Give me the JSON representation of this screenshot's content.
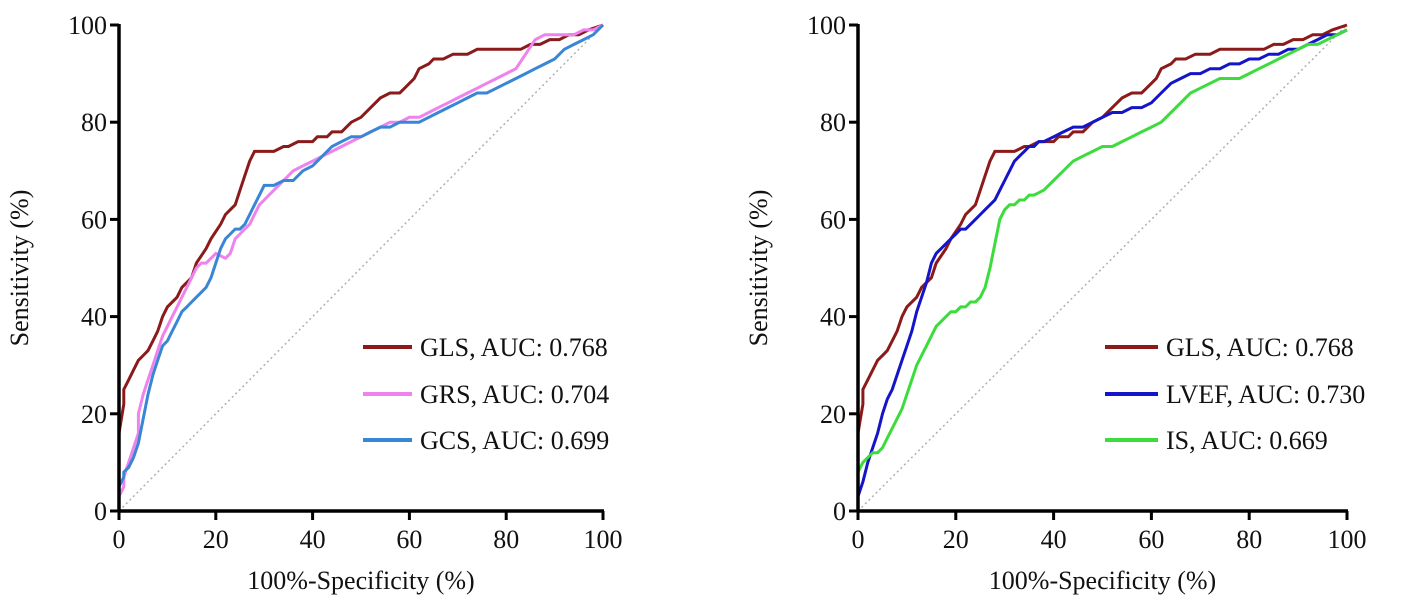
{
  "chart_data": [
    {
      "type": "line",
      "xlabel": "100%-Specificity (%)",
      "ylabel": "Sensitivity (%)",
      "xlim": [
        0,
        100
      ],
      "ylim": [
        0,
        100
      ],
      "xticks": [
        "0",
        "20",
        "40",
        "60",
        "80",
        "100"
      ],
      "yticks": [
        "0",
        "20",
        "40",
        "60",
        "80",
        "100"
      ],
      "grid": false,
      "legend": "bottom-right",
      "reference_line": "diagonal-dotted",
      "colors": [
        "#8B1A1A",
        "#EE82EE",
        "#3A86D6"
      ],
      "series": [
        {
          "name": "GLS, AUC: 0.768",
          "x": [
            0,
            0,
            0,
            1,
            1,
            2,
            3,
            4,
            5,
            6,
            7,
            8,
            9,
            10,
            12,
            13,
            15,
            16,
            18,
            19,
            21,
            22,
            23,
            24,
            25,
            26,
            27,
            28,
            30,
            32,
            34,
            35,
            37,
            38,
            40,
            41,
            43,
            44,
            46,
            48,
            50,
            52,
            54,
            56,
            58,
            59,
            61,
            62,
            64,
            65,
            67,
            69,
            70,
            72,
            74,
            76,
            78,
            80,
            82,
            83,
            85,
            87,
            89,
            91,
            93,
            95,
            97,
            100
          ],
          "y": [
            0,
            10,
            16,
            22,
            25,
            27,
            29,
            31,
            32,
            33,
            35,
            37,
            40,
            42,
            44,
            46,
            48,
            51,
            54,
            56,
            59,
            61,
            62,
            63,
            66,
            69,
            72,
            74,
            74,
            74,
            75,
            75,
            76,
            76,
            76,
            77,
            77,
            78,
            78,
            80,
            81,
            83,
            85,
            86,
            86,
            87,
            89,
            91,
            92,
            93,
            93,
            94,
            94,
            94,
            95,
            95,
            95,
            95,
            95,
            95,
            96,
            96,
            97,
            97,
            98,
            98,
            99,
            100
          ]
        },
        {
          "name": "GRS, AUC: 0.704",
          "x": [
            0,
            0,
            1,
            1,
            2,
            3,
            4,
            4,
            5,
            6,
            7,
            8,
            9,
            10,
            11,
            12,
            13,
            14,
            15,
            16,
            17,
            18,
            19,
            20,
            22,
            23,
            24,
            25,
            26,
            27,
            28,
            29,
            30,
            31,
            32,
            33,
            34,
            35,
            36,
            38,
            40,
            42,
            44,
            46,
            48,
            50,
            52,
            54,
            56,
            58,
            60,
            62,
            64,
            66,
            68,
            70,
            72,
            74,
            76,
            78,
            80,
            82,
            84,
            86,
            88,
            90,
            92,
            94,
            96,
            98,
            100
          ],
          "y": [
            0,
            3,
            5,
            7,
            10,
            13,
            16,
            20,
            24,
            27,
            30,
            33,
            36,
            38,
            40,
            42,
            44,
            46,
            48,
            50,
            51,
            51,
            52,
            53,
            52,
            53,
            56,
            57,
            58,
            59,
            61,
            63,
            64,
            65,
            66,
            67,
            68,
            69,
            70,
            71,
            72,
            73,
            74,
            75,
            76,
            77,
            78,
            79,
            80,
            80,
            81,
            81,
            82,
            83,
            84,
            85,
            86,
            87,
            88,
            89,
            90,
            91,
            94,
            97,
            98,
            98,
            98,
            98,
            99,
            99,
            100
          ]
        },
        {
          "name": "GCS, AUC: 0.699",
          "x": [
            0,
            0,
            1,
            1,
            2,
            3,
            4,
            5,
            6,
            7,
            8,
            9,
            10,
            11,
            12,
            13,
            14,
            15,
            16,
            17,
            18,
            19,
            20,
            21,
            22,
            23,
            24,
            25,
            26,
            27,
            28,
            29,
            30,
            32,
            34,
            36,
            38,
            40,
            42,
            44,
            46,
            48,
            50,
            52,
            54,
            56,
            58,
            60,
            62,
            64,
            66,
            68,
            70,
            72,
            74,
            76,
            78,
            80,
            82,
            84,
            86,
            88,
            90,
            92,
            94,
            96,
            98,
            100
          ],
          "y": [
            0,
            5,
            7,
            8,
            9,
            11,
            14,
            19,
            24,
            28,
            31,
            34,
            35,
            37,
            39,
            41,
            42,
            43,
            44,
            45,
            46,
            48,
            51,
            54,
            56,
            57,
            58,
            58,
            59,
            61,
            63,
            65,
            67,
            67,
            68,
            68,
            70,
            71,
            73,
            75,
            76,
            77,
            77,
            78,
            79,
            79,
            80,
            80,
            80,
            81,
            82,
            83,
            84,
            85,
            86,
            86,
            87,
            88,
            89,
            90,
            91,
            92,
            93,
            95,
            96,
            97,
            98,
            100
          ]
        }
      ]
    },
    {
      "type": "line",
      "xlabel": "100%-Specificity (%)",
      "ylabel": "Sensitivity (%)",
      "xlim": [
        0,
        100
      ],
      "ylim": [
        0,
        100
      ],
      "xticks": [
        "0",
        "20",
        "40",
        "60",
        "80",
        "100"
      ],
      "yticks": [
        "0",
        "20",
        "40",
        "60",
        "80",
        "100"
      ],
      "grid": false,
      "legend": "bottom-right",
      "reference_line": "diagonal-dotted",
      "colors": [
        "#8B1A1A",
        "#1414C8",
        "#3DDC3D"
      ],
      "series": [
        {
          "name": "GLS, AUC: 0.768",
          "x": [
            0,
            0,
            0,
            1,
            1,
            2,
            3,
            4,
            5,
            6,
            7,
            8,
            9,
            10,
            12,
            13,
            15,
            16,
            18,
            19,
            21,
            22,
            23,
            24,
            25,
            26,
            27,
            28,
            30,
            32,
            34,
            35,
            37,
            38,
            40,
            41,
            43,
            44,
            46,
            48,
            50,
            52,
            54,
            56,
            58,
            59,
            61,
            62,
            64,
            65,
            67,
            69,
            70,
            72,
            74,
            76,
            78,
            80,
            82,
            83,
            85,
            87,
            89,
            91,
            93,
            95,
            97,
            100
          ],
          "y": [
            0,
            10,
            16,
            22,
            25,
            27,
            29,
            31,
            32,
            33,
            35,
            37,
            40,
            42,
            44,
            46,
            48,
            51,
            54,
            56,
            59,
            61,
            62,
            63,
            66,
            69,
            72,
            74,
            74,
            74,
            75,
            75,
            76,
            76,
            76,
            77,
            77,
            78,
            78,
            80,
            81,
            83,
            85,
            86,
            86,
            87,
            89,
            91,
            92,
            93,
            93,
            94,
            94,
            94,
            95,
            95,
            95,
            95,
            95,
            95,
            96,
            96,
            97,
            97,
            98,
            98,
            99,
            100
          ]
        },
        {
          "name": "LVEF, AUC: 0.730",
          "x": [
            0,
            0,
            1,
            2,
            3,
            4,
            5,
            6,
            7,
            8,
            9,
            10,
            11,
            12,
            13,
            14,
            15,
            16,
            17,
            18,
            19,
            20,
            21,
            22,
            23,
            24,
            25,
            26,
            27,
            28,
            29,
            30,
            31,
            32,
            33,
            34,
            35,
            36,
            37,
            38,
            40,
            42,
            44,
            46,
            48,
            50,
            52,
            54,
            56,
            58,
            60,
            62,
            64,
            66,
            68,
            70,
            72,
            74,
            76,
            78,
            80,
            82,
            84,
            86,
            88,
            90,
            92,
            94,
            96,
            98,
            100
          ],
          "y": [
            0,
            3,
            6,
            10,
            13,
            16,
            20,
            23,
            25,
            28,
            31,
            34,
            37,
            41,
            44,
            47,
            51,
            53,
            54,
            55,
            56,
            57,
            58,
            58,
            59,
            60,
            61,
            62,
            63,
            64,
            66,
            68,
            70,
            72,
            73,
            74,
            75,
            75,
            76,
            76,
            77,
            78,
            79,
            79,
            80,
            81,
            82,
            82,
            83,
            83,
            84,
            86,
            88,
            89,
            90,
            90,
            91,
            91,
            92,
            92,
            93,
            93,
            94,
            94,
            95,
            95,
            96,
            97,
            98,
            98,
            99
          ]
        },
        {
          "name": "IS, AUC: 0.669",
          "x": [
            0,
            0,
            1,
            2,
            3,
            4,
            5,
            6,
            7,
            8,
            9,
            10,
            11,
            12,
            13,
            14,
            15,
            16,
            17,
            18,
            19,
            20,
            21,
            22,
            23,
            24,
            25,
            26,
            27,
            28,
            29,
            30,
            31,
            32,
            33,
            34,
            35,
            36,
            38,
            40,
            42,
            44,
            46,
            48,
            50,
            52,
            54,
            56,
            58,
            60,
            62,
            64,
            66,
            68,
            70,
            72,
            74,
            76,
            78,
            80,
            82,
            84,
            86,
            88,
            90,
            92,
            94,
            96,
            98,
            100
          ],
          "y": [
            0,
            8,
            10,
            11,
            12,
            12,
            13,
            15,
            17,
            19,
            21,
            24,
            27,
            30,
            32,
            34,
            36,
            38,
            39,
            40,
            41,
            41,
            42,
            42,
            43,
            43,
            44,
            46,
            50,
            55,
            60,
            62,
            63,
            63,
            64,
            64,
            65,
            65,
            66,
            68,
            70,
            72,
            73,
            74,
            75,
            75,
            76,
            77,
            78,
            79,
            80,
            82,
            84,
            86,
            87,
            88,
            89,
            89,
            89,
            90,
            91,
            92,
            93,
            94,
            95,
            96,
            96,
            97,
            98,
            99
          ]
        }
      ]
    }
  ]
}
